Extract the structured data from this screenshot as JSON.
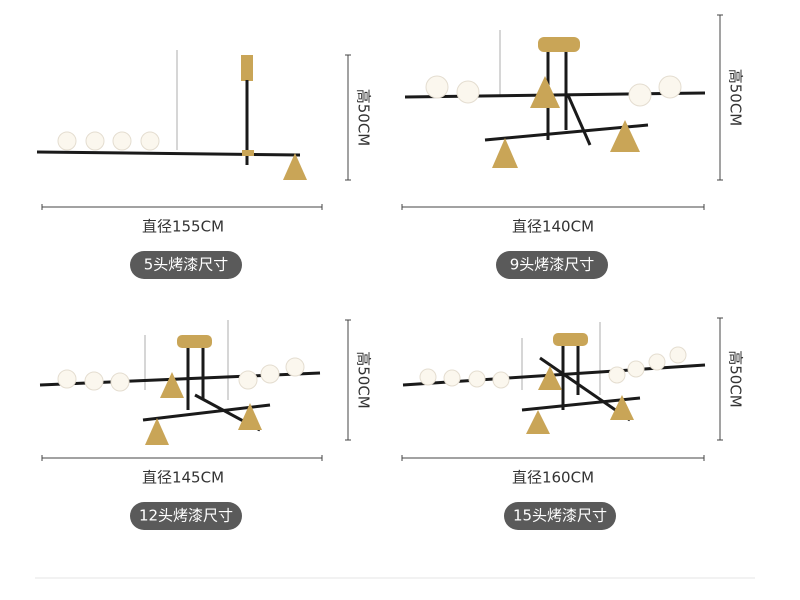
{
  "panels": [
    {
      "height": "高50CM",
      "diameter": "直径155CM",
      "badge": "5头烤漆尺寸"
    },
    {
      "height": "高50CM",
      "diameter": "直径140CM",
      "badge": "9头烤漆尺寸"
    },
    {
      "height": "高50CM",
      "diameter": "直径145CM",
      "badge": "12头烤漆尺寸"
    },
    {
      "height": "高50CM",
      "diameter": "直径160CM",
      "badge": "15头烤漆尺寸"
    }
  ]
}
